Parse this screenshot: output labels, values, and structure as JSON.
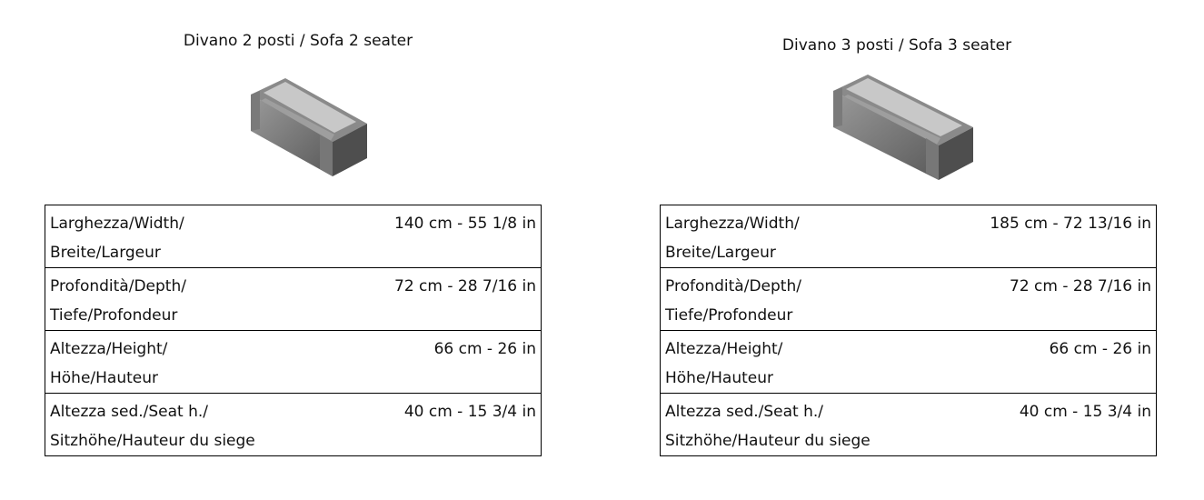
{
  "products": [
    {
      "title": "Divano 2 posti / Sofa 2 seater",
      "image": "sofa-2-seater",
      "rows": [
        {
          "label1": "Larghezza/Width/",
          "label2": "Breite/Largeur",
          "value": "140 cm - 55 1/8 in"
        },
        {
          "label1": "Profondità/Depth/",
          "label2": "Tiefe/Profondeur",
          "value": "72 cm - 28 7/16 in"
        },
        {
          "label1": "Altezza/Height/",
          "label2": "Höhe/Hauteur",
          "value": "66 cm - 26 in"
        },
        {
          "label1": "Altezza sed./Seat h./",
          "label2": "Sitzhöhe/Hauteur du siege",
          "value": "40 cm - 15 3/4 in"
        }
      ]
    },
    {
      "title": "Divano 3 posti / Sofa 3 seater",
      "image": "sofa-3-seater",
      "rows": [
        {
          "label1": "Larghezza/Width/",
          "label2": "Breite/Largeur",
          "value": "185 cm - 72 13/16 in"
        },
        {
          "label1": "Profondità/Depth/",
          "label2": "Tiefe/Profondeur",
          "value": "72 cm - 28 7/16 in"
        },
        {
          "label1": "Altezza/Height/",
          "label2": "Höhe/Hauteur",
          "value": "66 cm - 26 in"
        },
        {
          "label1": "Altezza sed./Seat h./",
          "label2": "Sitzhöhe/Hauteur du siege",
          "value": "40 cm - 15 3/4 in"
        }
      ]
    }
  ]
}
